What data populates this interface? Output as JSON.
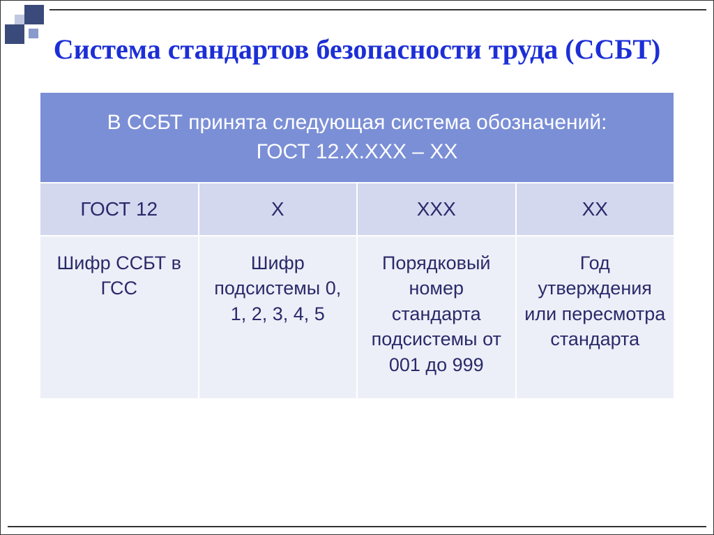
{
  "title": "Система стандартов безопасности труда  (ССБТ)",
  "header_line1": "В ССБТ принята следующая система обозначений:",
  "header_line2": "ГОСТ 12.Х.ХХХ – ХХ",
  "row2": {
    "c1": "ГОСТ 12",
    "c2": "Х",
    "c3": "ХХХ",
    "c4": "ХХ"
  },
  "row3": {
    "c1": "Шифр ССБТ в ГСС",
    "c2": "Шифр подсистемы 0, 1, 2, 3, 4, 5",
    "c3": "Порядковый номер стандарта подсистемы от 001 до 999",
    "c4": "Год утверждения или пересмотра стандарта"
  },
  "colors": {
    "title": "#1c2fd6",
    "header_bg": "#7b8fd6",
    "row2_bg": "#d3d8ef",
    "row3_bg": "#edeff8",
    "text": "#2a2a6a",
    "deco_dark": "#3a4a7a"
  }
}
